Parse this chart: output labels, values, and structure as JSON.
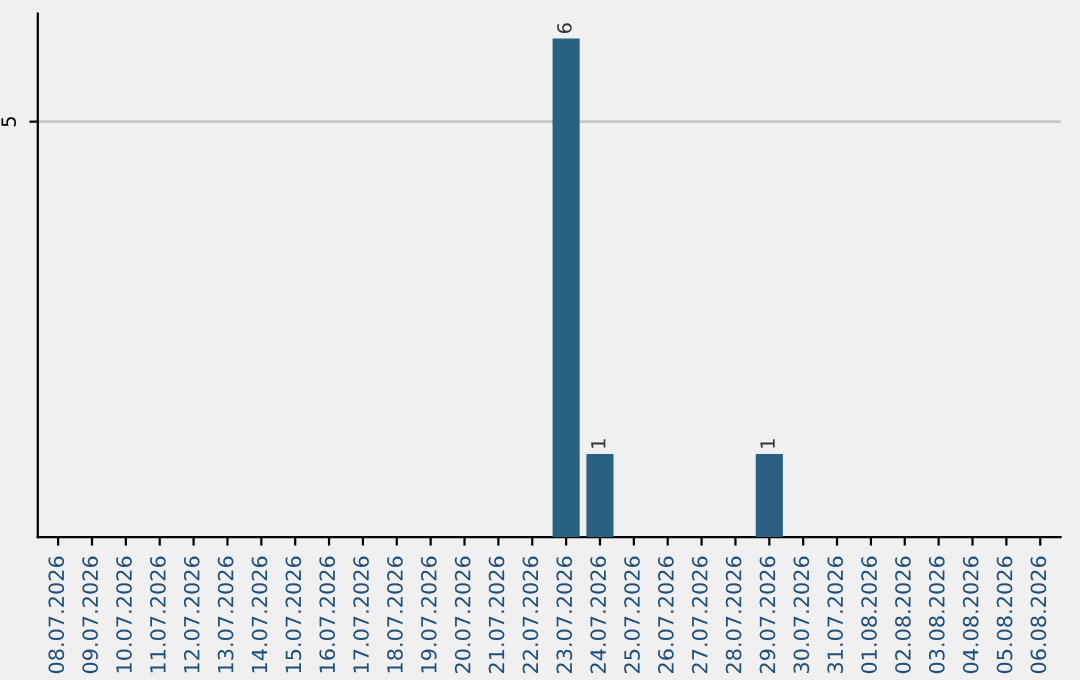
{
  "chart_data": {
    "type": "bar",
    "categories": [
      "08.07.2026",
      "09.07.2026",
      "10.07.2026",
      "11.07.2026",
      "12.07.2026",
      "13.07.2026",
      "14.07.2026",
      "15.07.2026",
      "16.07.2026",
      "17.07.2026",
      "18.07.2026",
      "19.07.2026",
      "20.07.2026",
      "21.07.2026",
      "22.07.2026",
      "23.07.2026",
      "24.07.2026",
      "25.07.2026",
      "26.07.2026",
      "27.07.2026",
      "28.07.2026",
      "29.07.2026",
      "30.07.2026",
      "31.07.2026",
      "01.08.2026",
      "02.08.2026",
      "03.08.2026",
      "04.08.2026",
      "05.08.2026",
      "06.08.2026"
    ],
    "values": [
      null,
      null,
      null,
      null,
      null,
      null,
      null,
      null,
      null,
      null,
      null,
      null,
      null,
      null,
      null,
      6,
      1,
      null,
      null,
      null,
      null,
      1,
      null,
      null,
      null,
      null,
      null,
      null,
      null,
      null
    ],
    "data_labels": true,
    "color": "#2a6082",
    "ylim": [
      0,
      6.3
    ],
    "yticks": [
      5
    ],
    "grid": "y"
  }
}
